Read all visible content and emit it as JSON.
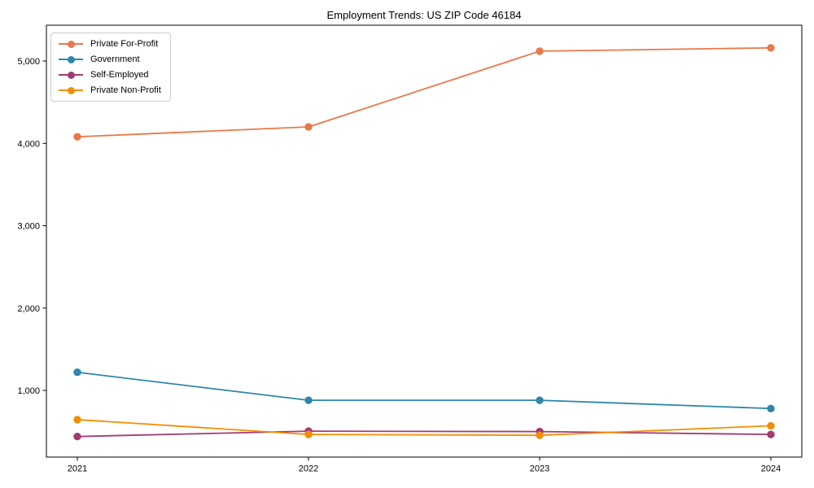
{
  "chart_data": {
    "type": "line",
    "title": "Employment Trends: US ZIP Code 46184",
    "x": [
      "2021",
      "2022",
      "2023",
      "2024"
    ],
    "series": [
      {
        "name": "Private For-Profit",
        "color": "#e8794b",
        "values": [
          4080,
          4200,
          5120,
          5160
        ]
      },
      {
        "name": "Government",
        "color": "#2e86ab",
        "values": [
          1220,
          880,
          880,
          780
        ]
      },
      {
        "name": "Self-Employed",
        "color": "#a23b72",
        "values": [
          440,
          505,
          500,
          465
        ]
      },
      {
        "name": "Private Non-Profit",
        "color": "#f18f01",
        "values": [
          645,
          465,
          455,
          570
        ]
      }
    ],
    "yticks": [
      1000,
      2000,
      3000,
      4000,
      5000
    ],
    "ytick_labels": [
      "1,000",
      "2,000",
      "3,000",
      "4,000",
      "5,000"
    ],
    "ylim": [
      190,
      5435
    ],
    "xlabel": "",
    "ylabel": "",
    "grid": false,
    "legend_position": "upper-left",
    "marker": "circle",
    "axis_color": "#000000",
    "text_color": "#000000",
    "background_color": "#ffffff"
  }
}
